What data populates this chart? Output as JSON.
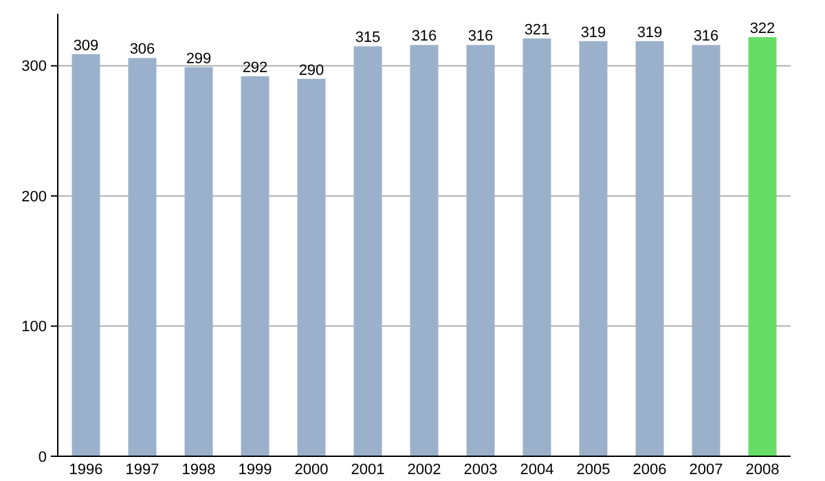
{
  "chart_data": {
    "type": "bar",
    "categories": [
      "1996",
      "1997",
      "1998",
      "1999",
      "2000",
      "2001",
      "2002",
      "2003",
      "2004",
      "2005",
      "2006",
      "2007",
      "2008"
    ],
    "values": [
      309,
      306,
      299,
      292,
      290,
      315,
      316,
      316,
      321,
      319,
      319,
      316,
      322
    ],
    "colors": [
      "#9bb1cb",
      "#9bb1cb",
      "#9bb1cb",
      "#9bb1cb",
      "#9bb1cb",
      "#9bb1cb",
      "#9bb1cb",
      "#9bb1cb",
      "#9bb1cb",
      "#9bb1cb",
      "#9bb1cb",
      "#9bb1cb",
      "#66dd66"
    ],
    "ylim": [
      0,
      340
    ],
    "yticks": [
      0,
      100,
      200,
      300
    ],
    "grid": "y",
    "data_labels": true
  }
}
